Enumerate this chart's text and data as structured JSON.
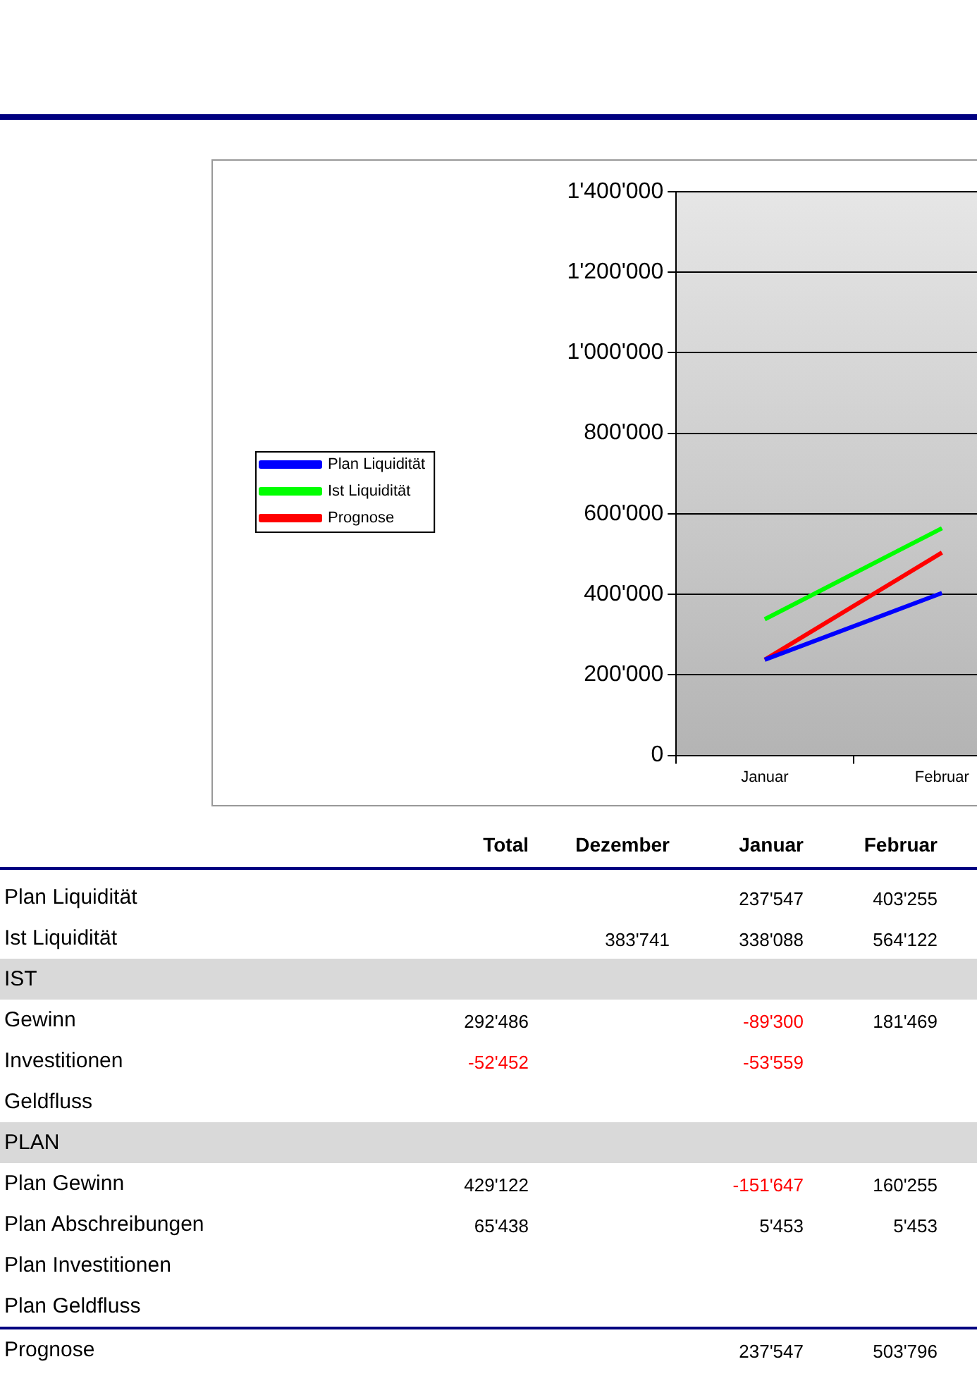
{
  "chart_data": [
    {
      "type": "line",
      "categories": [
        "Januar",
        "Februar"
      ],
      "series": [
        {
          "name": "Plan Liquidität",
          "color": "#0000ff",
          "values": [
            237547,
            403255
          ]
        },
        {
          "name": "Ist Liquidität",
          "color": "#00ff00",
          "values": [
            338088,
            564122
          ]
        },
        {
          "name": "Prognose",
          "color": "#ff0000",
          "values": [
            237547,
            503796
          ]
        }
      ],
      "ylim": [
        0,
        1400000
      ],
      "yticks": [
        0,
        {
          "value": 200000,
          "label": "200'000"
        },
        {
          "value": 400000,
          "label": "400'000"
        },
        {
          "value": 600000,
          "label": "600'000"
        },
        {
          "value": 800000,
          "label": "800'000"
        },
        {
          "value": 1000000,
          "label": "1'000'000"
        },
        {
          "value": 1200000,
          "label": "1'200'000"
        },
        {
          "value": 1400000,
          "label": "1'400'000"
        }
      ],
      "grid": "y",
      "legend": "left",
      "marker": "none",
      "line_style": "solid"
    },
    {
      "type": "other",
      "categories": [
        "Total",
        "Dezember",
        "Januar",
        "Februar"
      ],
      "y_categories": [
        "Plan Liquidität",
        "Ist Liquidität",
        "IST",
        "Gewinn",
        "Investitionen",
        "Geldfluss",
        "PLAN",
        "Plan Gewinn",
        "Plan Abschreibungen",
        "Plan Investitionen",
        "Plan Geldfluss",
        "Prognose"
      ],
      "cell_labels": [
        [
          null,
          null,
          "237'547",
          "403'255"
        ],
        [
          null,
          "383'741",
          "338'088",
          "564'122"
        ],
        null,
        [
          "292'486",
          null,
          "-89'300",
          "181'469"
        ],
        [
          "-52'452",
          null,
          "-53'559",
          null
        ],
        [
          null,
          null,
          null,
          null
        ],
        null,
        [
          "429'122",
          null,
          "-151'647",
          "160'255"
        ],
        [
          "65'438",
          null,
          "5'453",
          "5'453"
        ],
        [
          null,
          null,
          null,
          null
        ],
        [
          null,
          null,
          null,
          null
        ],
        [
          null,
          null,
          "237'547",
          "503'796"
        ]
      ]
    }
  ]
}
